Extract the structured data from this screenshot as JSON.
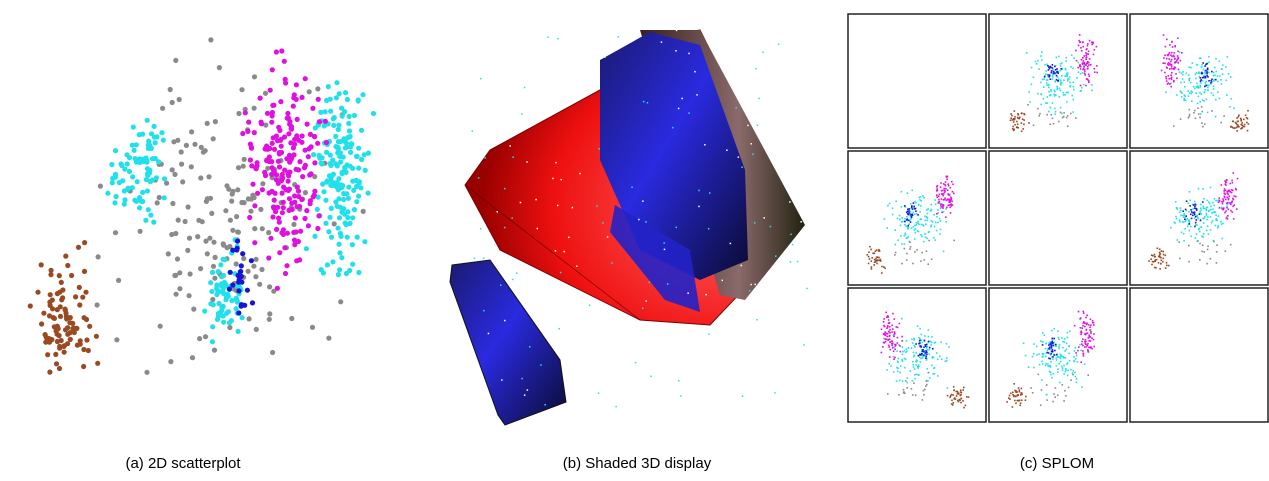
{
  "figure": {
    "panels": [
      {
        "caption": "(a) 2D scatterplot"
      },
      {
        "caption": "(b) Shaded 3D display"
      },
      {
        "caption": "(c) SPLOM"
      }
    ]
  }
}
